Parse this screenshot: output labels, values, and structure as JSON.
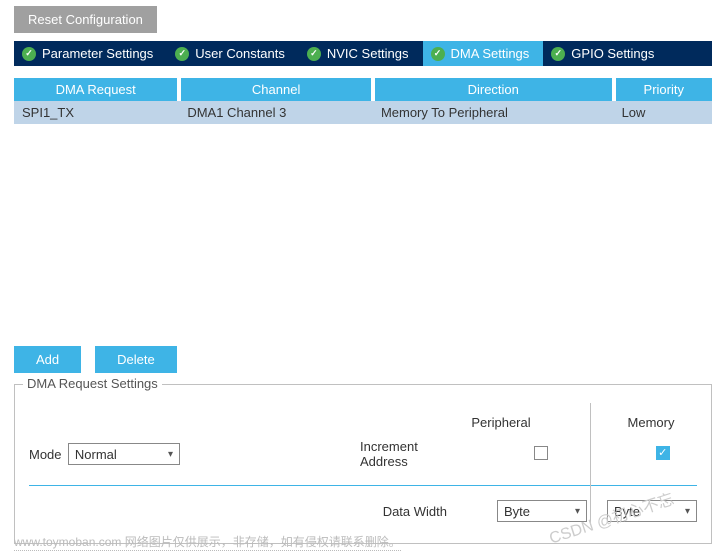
{
  "reset_label": "Reset Configuration",
  "tabs": [
    {
      "label": "Parameter Settings",
      "active": false
    },
    {
      "label": "User Constants",
      "active": false
    },
    {
      "label": "NVIC Settings",
      "active": false
    },
    {
      "label": "DMA Settings",
      "active": true
    },
    {
      "label": "GPIO Settings",
      "active": false
    }
  ],
  "table": {
    "headers": [
      "DMA Request",
      "Channel",
      "Direction",
      "Priority"
    ],
    "rows": [
      [
        "SPI1_TX",
        "DMA1 Channel 3",
        "Memory To Peripheral",
        "Low"
      ]
    ]
  },
  "buttons": {
    "add": "Add",
    "delete": "Delete"
  },
  "settings": {
    "legend": "DMA Request Settings",
    "col_peripheral": "Peripheral",
    "col_memory": "Memory",
    "mode_label": "Mode",
    "mode_value": "Normal",
    "increment_label": "Increment Address",
    "peripheral_checked": false,
    "memory_checked": true,
    "data_width_label": "Data Width",
    "data_width_peripheral": "Byte",
    "data_width_memory": "Byte"
  },
  "watermark": "CSDN @初心不忘",
  "footnote": "www.toymoban.com 网络图片仅供展示，非存储，如有侵权请联系删除。",
  "colors": {
    "accent": "#3eb4e6",
    "tab_bg": "#002a5c",
    "row_bg": "#bfd4e8",
    "reset_bg": "#a0a0a0",
    "check_green": "#4caf50"
  }
}
